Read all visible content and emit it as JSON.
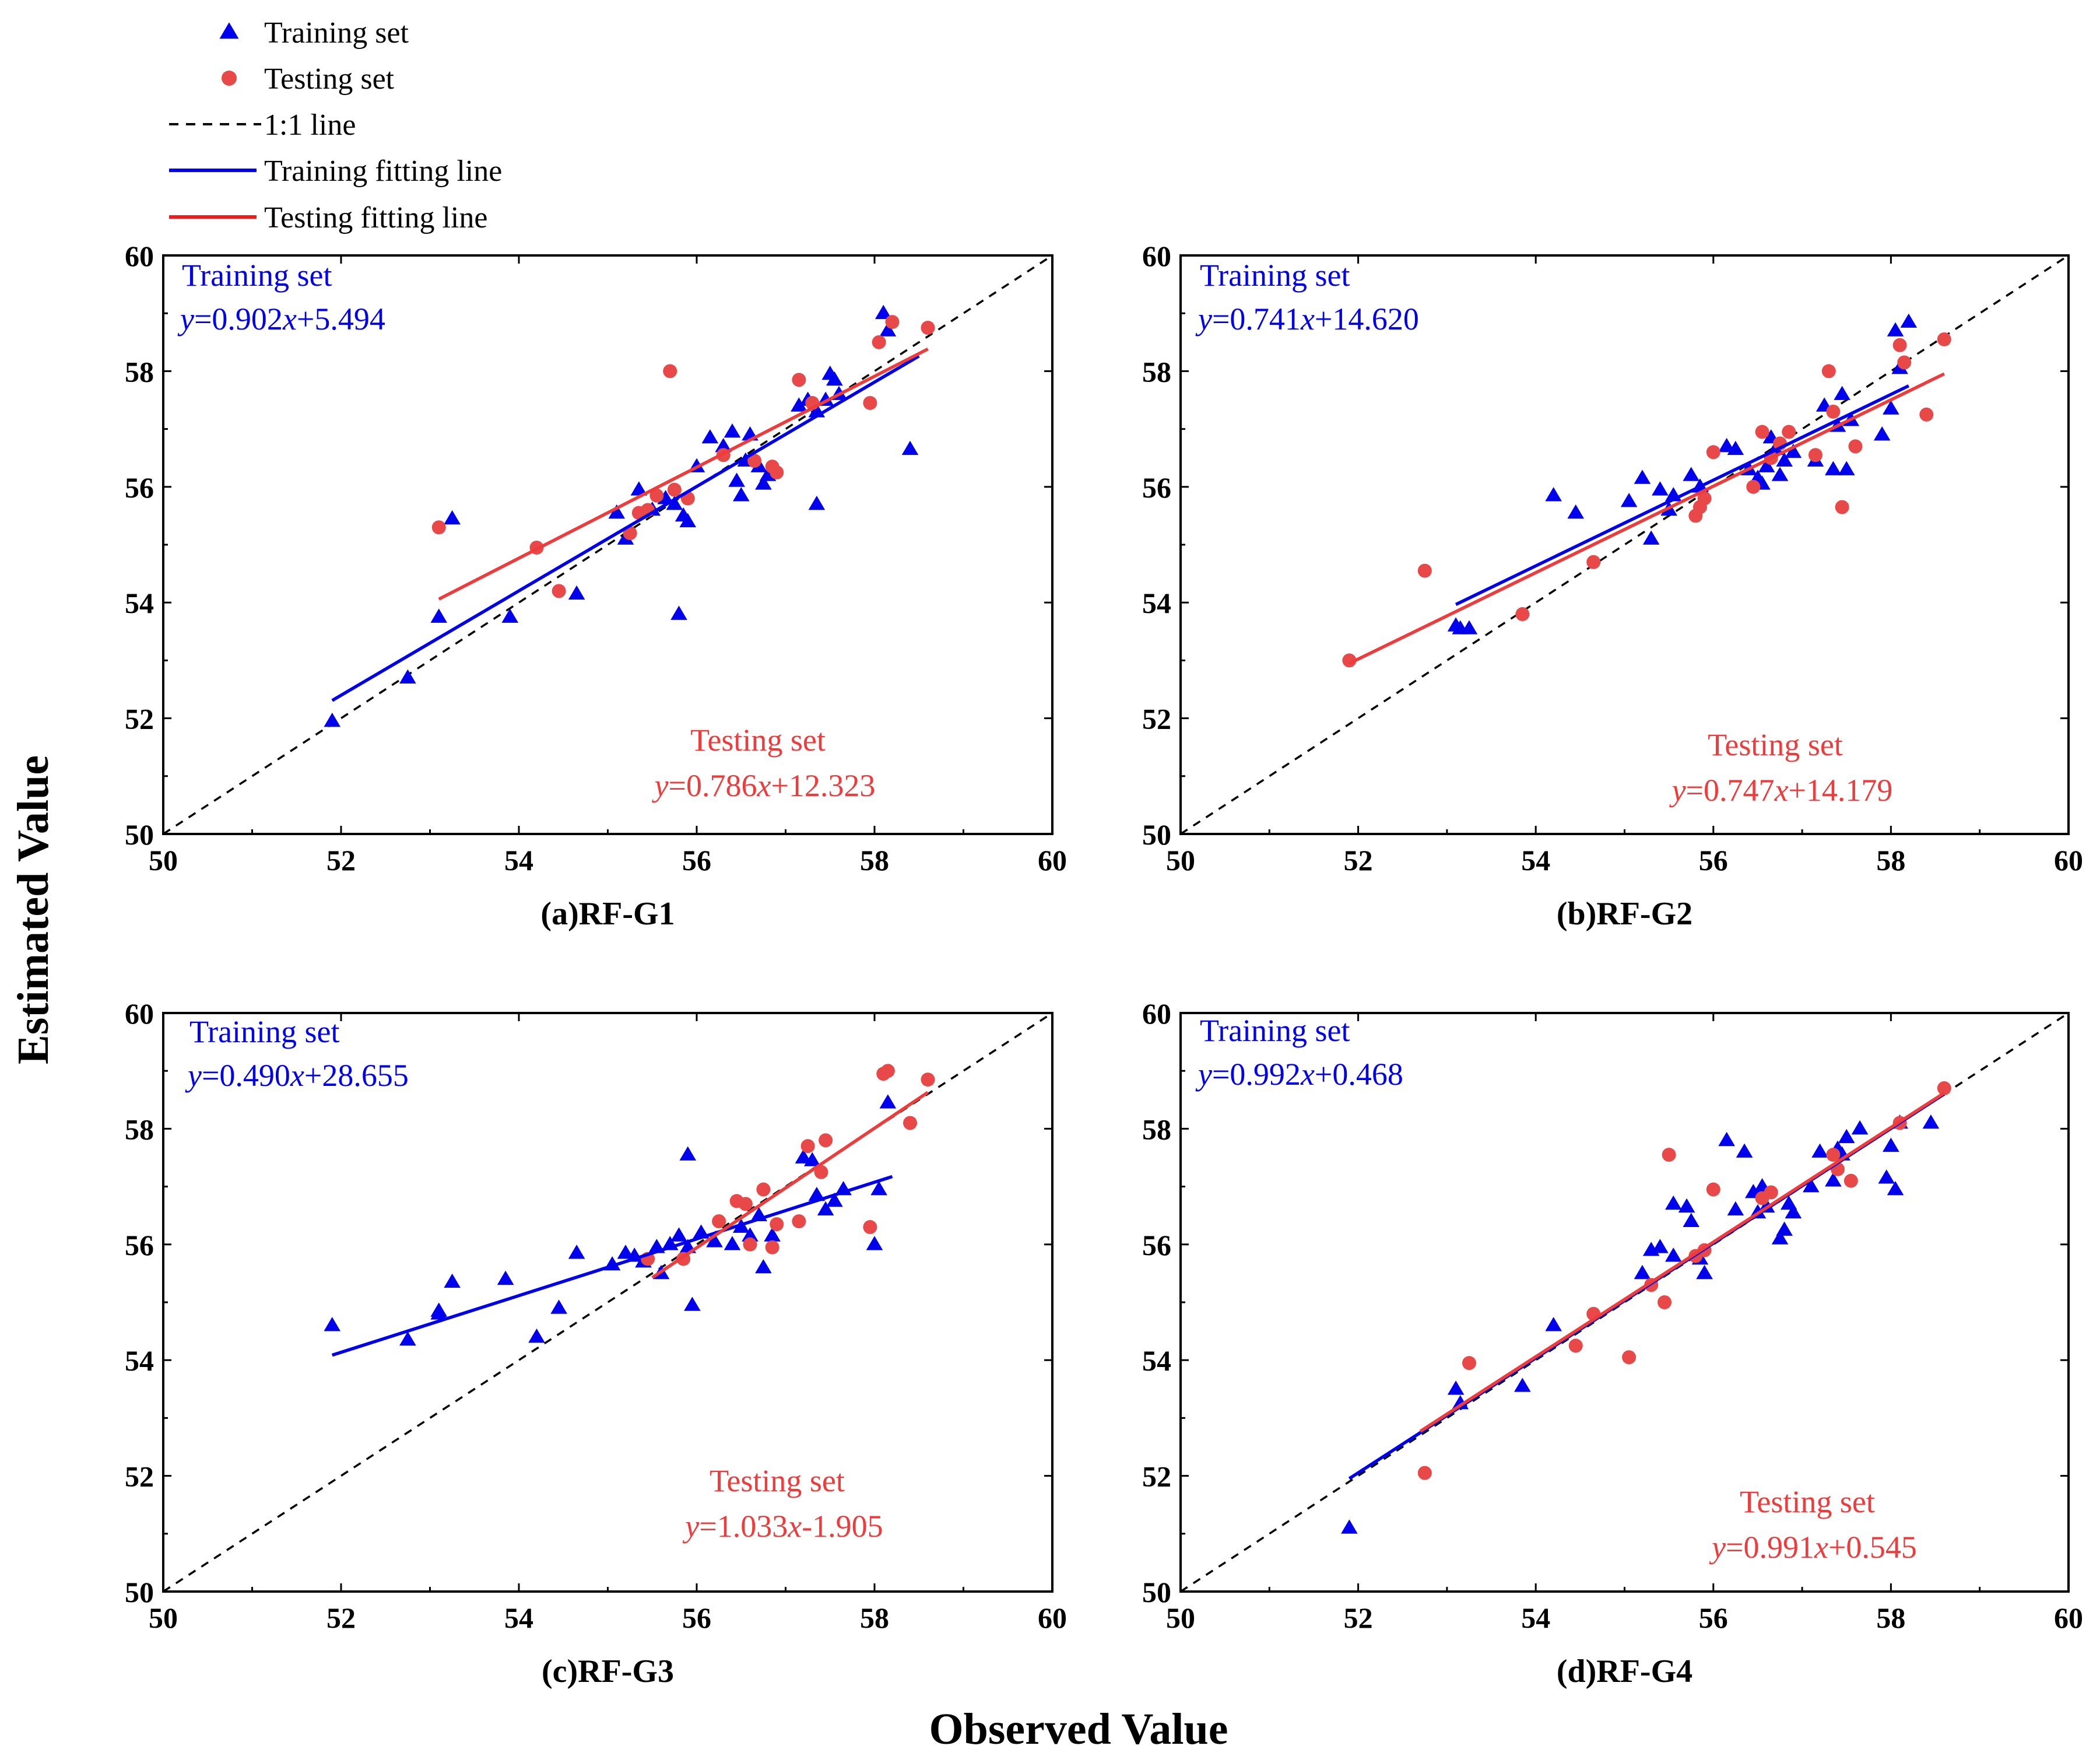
{
  "colors": {
    "train": "#0000ee",
    "test": "#ee3b3b",
    "testPoint": "#e84848",
    "diag": "#000000"
  },
  "legend": [
    {
      "label": "Training set",
      "kind": "triangle",
      "color": "#0000ee"
    },
    {
      "label": "Testing set",
      "kind": "circle",
      "color": "#e84848"
    },
    {
      "label": "1:1 line",
      "kind": "dash",
      "color": "#000000"
    },
    {
      "label": "Training fitting line",
      "kind": "line",
      "color": "#0000ee"
    },
    {
      "label": "Testing fitting line",
      "kind": "line",
      "color": "#ee1c1c"
    }
  ],
  "axes": {
    "xlabel": "Observed Value",
    "ylabel": "Estimated Value"
  },
  "chart_data": [
    {
      "type": "scatter",
      "title": "(a)RF-G1",
      "xlim": [
        50,
        60
      ],
      "ylim": [
        50,
        60
      ],
      "xticks": [
        "50",
        "52",
        "54",
        "56",
        "58",
        "60"
      ],
      "yticks": [
        "50",
        "52",
        "54",
        "56",
        "58",
        "60"
      ],
      "train_label": "Training set",
      "test_label": "Testing set",
      "train_eq": {
        "y": "y",
        "middle": "=0.902",
        "x": "x",
        "tail": "+5.494"
      },
      "test_eq": {
        "y": "y",
        "middle": "=0.786",
        "x": "x",
        "tail": "+12.323"
      },
      "train_fit": {
        "slope": 0.902,
        "intercept": 5.494,
        "x_range": [
          51.9,
          58.5
        ]
      },
      "test_fit": {
        "slope": 0.786,
        "intercept": 12.323,
        "x_range": [
          53.1,
          58.6
        ]
      },
      "train_points": [
        [
          51.9,
          51.95
        ],
        [
          52.75,
          52.7
        ],
        [
          53.1,
          53.75
        ],
        [
          53.25,
          55.45
        ],
        [
          53.9,
          53.75
        ],
        [
          54.65,
          54.15
        ],
        [
          55.1,
          55.55
        ],
        [
          55.2,
          55.1
        ],
        [
          55.35,
          55.95
        ],
        [
          55.5,
          55.6
        ],
        [
          55.65,
          55.8
        ],
        [
          55.75,
          55.7
        ],
        [
          55.8,
          53.8
        ],
        [
          55.85,
          55.5
        ],
        [
          55.9,
          55.4
        ],
        [
          56.0,
          56.35
        ],
        [
          56.15,
          56.85
        ],
        [
          56.3,
          56.7
        ],
        [
          56.4,
          56.95
        ],
        [
          56.45,
          56.1
        ],
        [
          56.5,
          55.85
        ],
        [
          56.55,
          56.45
        ],
        [
          56.6,
          56.9
        ],
        [
          56.7,
          56.35
        ],
        [
          56.75,
          56.05
        ],
        [
          56.8,
          56.2
        ],
        [
          56.85,
          56.3
        ],
        [
          57.15,
          57.4
        ],
        [
          57.25,
          57.5
        ],
        [
          57.35,
          55.7
        ],
        [
          57.35,
          57.3
        ],
        [
          57.45,
          57.5
        ],
        [
          57.5,
          57.95
        ],
        [
          57.55,
          57.85
        ],
        [
          57.6,
          57.6
        ],
        [
          58.1,
          59.0
        ],
        [
          58.15,
          58.7
        ],
        [
          58.4,
          56.65
        ]
      ],
      "test_points": [
        [
          53.1,
          55.3
        ],
        [
          54.2,
          54.95
        ],
        [
          54.45,
          54.2
        ],
        [
          55.25,
          55.2
        ],
        [
          55.35,
          55.55
        ],
        [
          55.45,
          55.6
        ],
        [
          55.55,
          55.85
        ],
        [
          55.7,
          58.0
        ],
        [
          55.75,
          55.95
        ],
        [
          55.9,
          55.8
        ],
        [
          56.3,
          56.55
        ],
        [
          56.65,
          56.45
        ],
        [
          56.85,
          56.35
        ],
        [
          56.9,
          56.25
        ],
        [
          57.15,
          57.85
        ],
        [
          57.3,
          57.45
        ],
        [
          57.95,
          57.45
        ],
        [
          58.05,
          58.5
        ],
        [
          58.2,
          58.85
        ],
        [
          58.6,
          58.75
        ]
      ]
    },
    {
      "type": "scatter",
      "title": "(b)RF-G2",
      "xlim": [
        50,
        60
      ],
      "ylim": [
        50,
        60
      ],
      "xticks": [
        "50",
        "52",
        "54",
        "56",
        "58",
        "60"
      ],
      "yticks": [
        "50",
        "52",
        "54",
        "56",
        "58",
        "60"
      ],
      "train_label": "Training set",
      "test_label": "Testing set",
      "train_eq": {
        "y": "y",
        "middle": "=0.741",
        "x": "x",
        "tail": "+14.620"
      },
      "test_eq": {
        "y": "y",
        "middle": "=0.747",
        "x": "x",
        "tail": "+14.179"
      },
      "train_fit": {
        "slope": 0.741,
        "intercept": 14.62,
        "x_range": [
          53.1,
          58.2
        ]
      },
      "test_fit": {
        "slope": 0.747,
        "intercept": 14.179,
        "x_range": [
          51.9,
          58.6
        ]
      },
      "train_points": [
        [
          53.1,
          53.6
        ],
        [
          53.15,
          53.55
        ],
        [
          53.25,
          53.55
        ],
        [
          54.2,
          55.85
        ],
        [
          54.45,
          55.55
        ],
        [
          55.05,
          55.75
        ],
        [
          55.2,
          56.15
        ],
        [
          55.3,
          55.1
        ],
        [
          55.4,
          55.95
        ],
        [
          55.5,
          55.6
        ],
        [
          55.55,
          55.85
        ],
        [
          55.75,
          56.2
        ],
        [
          55.85,
          56.0
        ],
        [
          56.15,
          56.7
        ],
        [
          56.25,
          56.65
        ],
        [
          56.4,
          56.3
        ],
        [
          56.5,
          56.15
        ],
        [
          56.55,
          56.05
        ],
        [
          56.6,
          56.35
        ],
        [
          56.65,
          56.85
        ],
        [
          56.7,
          56.65
        ],
        [
          56.75,
          56.2
        ],
        [
          56.8,
          56.45
        ],
        [
          56.9,
          56.6
        ],
        [
          57.15,
          56.45
        ],
        [
          57.25,
          57.4
        ],
        [
          57.35,
          56.3
        ],
        [
          57.4,
          57.05
        ],
        [
          57.45,
          57.6
        ],
        [
          57.5,
          56.3
        ],
        [
          57.55,
          57.15
        ],
        [
          57.9,
          56.9
        ],
        [
          58.0,
          57.35
        ],
        [
          58.05,
          58.7
        ],
        [
          58.1,
          58.05
        ],
        [
          58.2,
          58.85
        ]
      ],
      "test_points": [
        [
          51.9,
          53.0
        ],
        [
          52.75,
          54.55
        ],
        [
          53.85,
          53.8
        ],
        [
          54.65,
          54.7
        ],
        [
          55.8,
          55.5
        ],
        [
          55.85,
          55.65
        ],
        [
          55.9,
          55.8
        ],
        [
          56.0,
          56.6
        ],
        [
          56.45,
          56.0
        ],
        [
          56.55,
          56.95
        ],
        [
          56.65,
          56.5
        ],
        [
          56.75,
          56.75
        ],
        [
          56.85,
          56.95
        ],
        [
          57.15,
          56.55
        ],
        [
          57.3,
          58.0
        ],
        [
          57.35,
          57.3
        ],
        [
          57.45,
          55.65
        ],
        [
          57.6,
          56.7
        ],
        [
          58.1,
          58.45
        ],
        [
          58.15,
          58.15
        ],
        [
          58.4,
          57.25
        ],
        [
          58.6,
          58.55
        ]
      ]
    },
    {
      "type": "scatter",
      "title": "(c)RF-G3",
      "xlim": [
        50,
        60
      ],
      "ylim": [
        50,
        60
      ],
      "xticks": [
        "50",
        "52",
        "54",
        "56",
        "58",
        "60"
      ],
      "yticks": [
        "50",
        "52",
        "54",
        "56",
        "58",
        "60"
      ],
      "train_label": "Training set",
      "test_label": "Testing set",
      "train_eq": {
        "y": "y",
        "middle": "=0.490",
        "x": "x",
        "tail": "+28.655"
      },
      "test_eq": {
        "y": "y",
        "middle": "=1.033",
        "x": "x",
        "tail": "-1.905"
      },
      "train_fit": {
        "slope": 0.49,
        "intercept": 28.655,
        "x_range": [
          51.9,
          58.2
        ]
      },
      "test_fit": {
        "slope": 1.033,
        "intercept": -1.905,
        "x_range": [
          55.5,
          58.6
        ]
      },
      "train_points": [
        [
          51.9,
          54.6
        ],
        [
          52.75,
          54.35
        ],
        [
          53.1,
          54.85
        ],
        [
          53.1,
          54.8
        ],
        [
          53.25,
          55.35
        ],
        [
          53.85,
          55.4
        ],
        [
          54.2,
          54.4
        ],
        [
          54.45,
          54.9
        ],
        [
          54.65,
          55.85
        ],
        [
          55.05,
          55.65
        ],
        [
          55.2,
          55.85
        ],
        [
          55.3,
          55.8
        ],
        [
          55.4,
          55.7
        ],
        [
          55.55,
          55.95
        ],
        [
          55.6,
          55.5
        ],
        [
          55.7,
          56.0
        ],
        [
          55.8,
          56.15
        ],
        [
          55.9,
          55.95
        ],
        [
          55.9,
          57.55
        ],
        [
          55.95,
          54.95
        ],
        [
          56.05,
          56.2
        ],
        [
          56.2,
          56.05
        ],
        [
          56.4,
          56.0
        ],
        [
          56.5,
          56.3
        ],
        [
          56.6,
          56.15
        ],
        [
          56.7,
          56.5
        ],
        [
          56.75,
          55.6
        ],
        [
          56.85,
          56.15
        ],
        [
          57.2,
          57.5
        ],
        [
          57.3,
          57.45
        ],
        [
          57.35,
          56.85
        ],
        [
          57.45,
          56.6
        ],
        [
          57.55,
          56.75
        ],
        [
          57.65,
          56.95
        ],
        [
          58.0,
          56.0
        ],
        [
          58.05,
          56.95
        ],
        [
          58.15,
          58.45
        ]
      ],
      "test_points": [
        [
          55.45,
          55.75
        ],
        [
          55.85,
          55.75
        ],
        [
          56.25,
          56.4
        ],
        [
          56.45,
          56.75
        ],
        [
          56.55,
          56.7
        ],
        [
          56.6,
          56.0
        ],
        [
          56.75,
          56.95
        ],
        [
          56.85,
          55.95
        ],
        [
          56.9,
          56.35
        ],
        [
          57.15,
          56.4
        ],
        [
          57.25,
          57.7
        ],
        [
          57.4,
          57.25
        ],
        [
          57.45,
          57.8
        ],
        [
          57.95,
          56.3
        ],
        [
          58.1,
          58.95
        ],
        [
          58.15,
          59.0
        ],
        [
          58.4,
          58.1
        ],
        [
          58.6,
          58.85
        ]
      ]
    },
    {
      "type": "scatter",
      "title": "(d)RF-G4",
      "xlim": [
        50,
        60
      ],
      "ylim": [
        50,
        60
      ],
      "xticks": [
        "50",
        "52",
        "54",
        "56",
        "58",
        "60"
      ],
      "yticks": [
        "50",
        "52",
        "54",
        "56",
        "58",
        "60"
      ],
      "train_label": "Training set",
      "test_label": "Testing set",
      "train_eq": {
        "y": "y",
        "middle": "=0.992",
        "x": "x",
        "tail": "+0.468"
      },
      "test_eq": {
        "y": "y",
        "middle": "=0.991",
        "x": "x",
        "tail": "+0.545"
      },
      "train_fit": {
        "slope": 0.992,
        "intercept": 0.468,
        "x_range": [
          51.9,
          58.6
        ]
      },
      "test_fit": {
        "slope": 0.991,
        "intercept": 0.545,
        "x_range": [
          52.7,
          58.6
        ]
      },
      "train_points": [
        [
          51.9,
          51.1
        ],
        [
          53.1,
          53.5
        ],
        [
          53.15,
          53.25
        ],
        [
          53.85,
          53.55
        ],
        [
          54.2,
          54.6
        ],
        [
          55.2,
          55.5
        ],
        [
          55.3,
          55.9
        ],
        [
          55.4,
          55.95
        ],
        [
          55.55,
          55.8
        ],
        [
          55.55,
          56.7
        ],
        [
          55.7,
          56.65
        ],
        [
          55.75,
          56.4
        ],
        [
          55.85,
          55.75
        ],
        [
          55.9,
          55.5
        ],
        [
          56.15,
          57.8
        ],
        [
          56.25,
          56.6
        ],
        [
          56.35,
          57.6
        ],
        [
          56.45,
          56.9
        ],
        [
          56.5,
          56.55
        ],
        [
          56.55,
          57.0
        ],
        [
          56.6,
          56.65
        ],
        [
          56.75,
          56.1
        ],
        [
          56.8,
          56.25
        ],
        [
          56.85,
          56.7
        ],
        [
          56.9,
          56.55
        ],
        [
          57.1,
          57.0
        ],
        [
          57.2,
          57.6
        ],
        [
          57.35,
          57.1
        ],
        [
          57.4,
          57.65
        ],
        [
          57.45,
          57.55
        ],
        [
          57.5,
          57.85
        ],
        [
          57.65,
          58.0
        ],
        [
          57.95,
          57.15
        ],
        [
          58.0,
          57.7
        ],
        [
          58.05,
          56.95
        ],
        [
          58.1,
          58.1
        ],
        [
          58.45,
          58.1
        ]
      ],
      "test_points": [
        [
          52.75,
          52.05
        ],
        [
          53.25,
          53.95
        ],
        [
          54.45,
          54.25
        ],
        [
          54.65,
          54.8
        ],
        [
          55.05,
          54.05
        ],
        [
          55.3,
          55.3
        ],
        [
          55.45,
          55.0
        ],
        [
          55.5,
          57.55
        ],
        [
          55.8,
          55.8
        ],
        [
          55.9,
          55.9
        ],
        [
          56.0,
          56.95
        ],
        [
          56.55,
          56.8
        ],
        [
          56.65,
          56.9
        ],
        [
          57.35,
          57.55
        ],
        [
          57.4,
          57.3
        ],
        [
          57.55,
          57.1
        ],
        [
          58.1,
          58.1
        ],
        [
          58.6,
          58.7
        ]
      ]
    }
  ]
}
